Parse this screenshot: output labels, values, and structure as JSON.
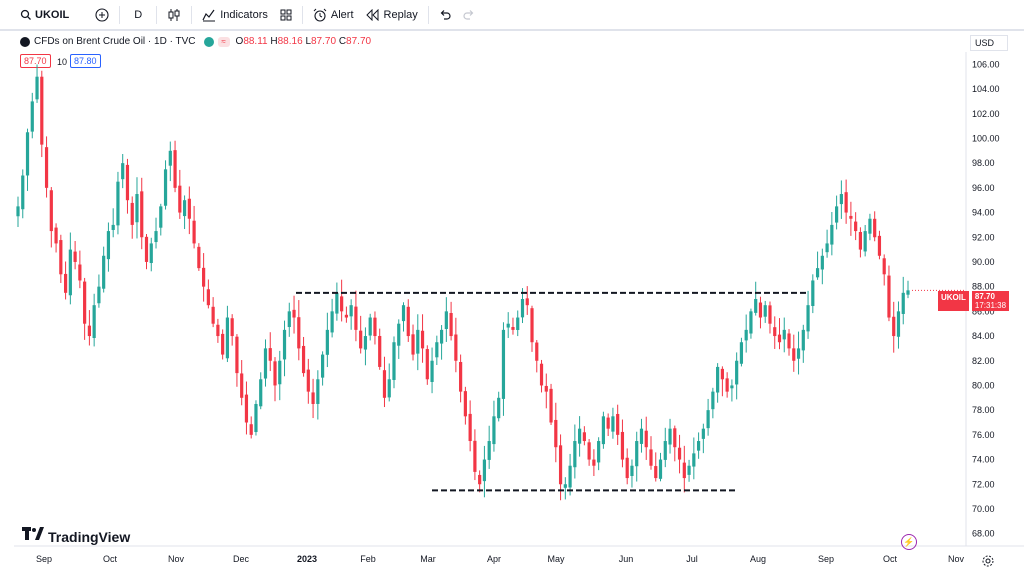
{
  "toolbar": {
    "symbol": "UKOIL",
    "interval": "D",
    "indicators_label": "Indicators",
    "alert_label": "Alert",
    "replay_label": "Replay"
  },
  "legend": {
    "title": "CFDs on Brent Crude Oil · 1D · TVC",
    "open_label": "O",
    "open": "88.11",
    "high_label": "H",
    "high": "88.16",
    "low_label": "L",
    "low": "87.70",
    "close_label": "C",
    "close": "87.70",
    "bid": "87.70",
    "spread": "10",
    "ask": "87.80"
  },
  "currency": "USD",
  "price_tag": {
    "symbol": "UKOIL",
    "price": "87.70",
    "countdown": "17:31:38"
  },
  "logo_text": "TradingView",
  "colors": {
    "up": "#26a69a",
    "down": "#f23645",
    "accent": "#2962ff",
    "line": "#131722"
  },
  "chart_data": {
    "type": "candlestick",
    "y_ticks": [
      "106.00",
      "104.00",
      "102.00",
      "100.00",
      "98.00",
      "96.00",
      "94.00",
      "92.00",
      "90.00",
      "88.00",
      "86.00",
      "84.00",
      "82.00",
      "80.00",
      "78.00",
      "76.00",
      "74.00",
      "72.00",
      "70.00",
      "68.00"
    ],
    "x_ticks": [
      "Sep",
      "Oct",
      "Nov",
      "Dec",
      "2023",
      "Feb",
      "Mar",
      "Apr",
      "May",
      "Jun",
      "Jul",
      "Aug",
      "Sep",
      "Oct",
      "Nov"
    ],
    "ylim": [
      67,
      107
    ],
    "resistance_level": 87.5,
    "support_level": 71.5,
    "closes": [
      94.5,
      97.0,
      100.5,
      103.0,
      105.0,
      99.5,
      96.0,
      92.5,
      91.5,
      89.0,
      87.5,
      91.0,
      90.0,
      88.5,
      85.0,
      84.0,
      86.5,
      88.0,
      90.5,
      92.5,
      93.0,
      96.5,
      98.0,
      95.0,
      93.0,
      95.5,
      92.0,
      90.0,
      91.5,
      92.5,
      94.5,
      97.5,
      99.0,
      96.0,
      94.0,
      95.0,
      93.5,
      91.5,
      89.5,
      88.0,
      86.5,
      85.0,
      84.0,
      82.5,
      85.5,
      84.0,
      81.0,
      79.0,
      77.0,
      76.0,
      78.5,
      80.5,
      83.0,
      82.0,
      80.0,
      82.0,
      84.5,
      86.0,
      85.5,
      83.0,
      81.0,
      79.5,
      78.5,
      80.5,
      82.5,
      84.5,
      86.0,
      87.5,
      86.0,
      85.5,
      86.5,
      84.5,
      83.0,
      84.0,
      85.5,
      84.0,
      81.5,
      79.0,
      80.5,
      83.5,
      85.0,
      86.5,
      84.0,
      82.5,
      84.5,
      83.0,
      80.5,
      82.0,
      83.5,
      84.5,
      86.0,
      84.0,
      82.0,
      79.5,
      77.5,
      75.5,
      73.0,
      72.0,
      74.0,
      75.5,
      77.5,
      79.0,
      84.5,
      85.0,
      84.5,
      85.5,
      87.0,
      86.5,
      83.5,
      82.0,
      80.0,
      79.5,
      77.0,
      75.0,
      72.0,
      72.0,
      73.5,
      75.5,
      76.5,
      75.5,
      74.0,
      73.5,
      75.5,
      77.5,
      76.5,
      77.5,
      76.0,
      74.0,
      72.5,
      73.5,
      75.5,
      76.5,
      75.0,
      73.5,
      72.5,
      74.0,
      75.5,
      76.5,
      75.0,
      74.0,
      72.5,
      73.5,
      74.5,
      75.5,
      76.5,
      78.0,
      79.5,
      81.5,
      80.5,
      79.5,
      80.0,
      82.0,
      83.5,
      84.5,
      86.0,
      87.0,
      85.5,
      86.5,
      85.0,
      84.0,
      83.5,
      84.5,
      83.0,
      82.0,
      83.0,
      84.5,
      86.5,
      88.5,
      89.5,
      90.5,
      91.5,
      93.0,
      94.5,
      95.5,
      94.0,
      93.5,
      92.5,
      91.0,
      92.5,
      93.5,
      92.0,
      90.5,
      89.0,
      85.5,
      84.0,
      86.0,
      87.5,
      87.7
    ]
  }
}
